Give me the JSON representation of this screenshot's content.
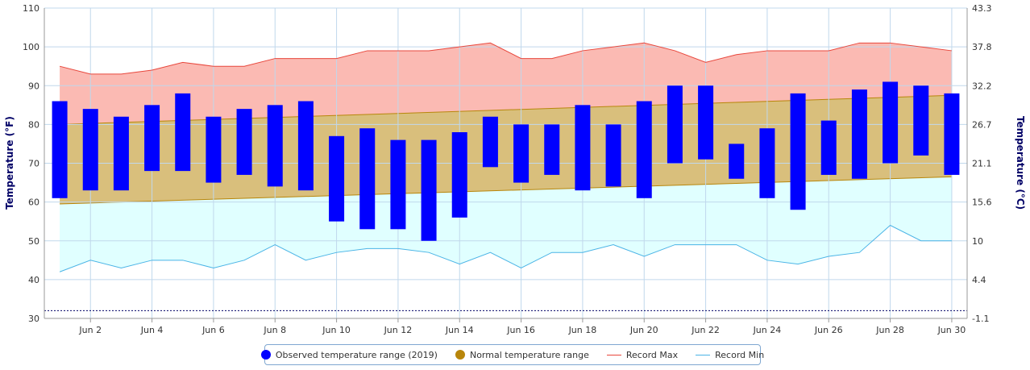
{
  "colors": {
    "observed": "#0000ff",
    "normal_fill": "#d9bf7c",
    "normal_line": "#b8860b",
    "record_max_fill": "#fbbab3",
    "record_max_line": "#e8473c",
    "record_min_fill": "#e0ffff",
    "record_min_line": "#4ab4e6",
    "grid": "#c0d8ec",
    "freezing": "#000066"
  },
  "legend": {
    "observed_label": "Observed temperature range (2019)",
    "normal_label": "Normal temperature range",
    "max_label": "Record Max",
    "min_label": "Record Min"
  },
  "chart_data": {
    "type": "bar",
    "y_axis_left": {
      "title": "Temperature (°F)",
      "range": [
        30,
        110
      ],
      "ticks": [
        30,
        40,
        50,
        60,
        70,
        80,
        90,
        100,
        110
      ]
    },
    "y_axis_right": {
      "title": "Temperature (°C)",
      "ticks": [
        "-1.1",
        "4.4",
        "10",
        "15.6",
        "21.1",
        "26.7",
        "32.2",
        "37.8",
        "43.3"
      ]
    },
    "x_axis": {
      "range": [
        1,
        30
      ],
      "ticks": [
        2,
        4,
        6,
        8,
        10,
        12,
        14,
        16,
        18,
        20,
        22,
        24,
        26,
        28,
        30
      ],
      "tick_labels": [
        "Jun 2",
        "Jun 4",
        "Jun 6",
        "Jun 8",
        "Jun 10",
        "Jun 12",
        "Jun 14",
        "Jun 16",
        "Jun 18",
        "Jun 20",
        "Jun 22",
        "Jun 24",
        "Jun 26",
        "Jun 28",
        "Jun 30"
      ]
    },
    "grid": true,
    "freezing_line": 32,
    "series": [
      {
        "name": "Observed temperature range (2019)",
        "type": "columnrange",
        "x": [
          1,
          2,
          3,
          4,
          5,
          6,
          7,
          8,
          9,
          10,
          11,
          12,
          13,
          14,
          15,
          16,
          17,
          18,
          19,
          20,
          21,
          22,
          23,
          24,
          25,
          26,
          27,
          28,
          29,
          30
        ],
        "low": [
          61,
          63,
          63,
          68,
          68,
          65,
          67,
          64,
          63,
          55,
          53,
          53,
          50,
          56,
          69,
          65,
          67,
          63,
          64,
          61,
          70,
          71,
          66,
          61,
          58,
          67,
          66,
          70,
          72,
          67
        ],
        "high": [
          86,
          84,
          82,
          85,
          88,
          82,
          84,
          85,
          86,
          77,
          79,
          76,
          76,
          78,
          82,
          80,
          80,
          85,
          80,
          86,
          90,
          90,
          75,
          79,
          88,
          81,
          89,
          91,
          90,
          88
        ]
      },
      {
        "name": "Normal temperature range",
        "type": "arearange",
        "x": [
          1,
          30
        ],
        "low": [
          59.5,
          66.5
        ],
        "high": [
          80,
          87.5
        ]
      },
      {
        "name": "Record Max",
        "type": "line",
        "x": [
          1,
          2,
          3,
          4,
          5,
          6,
          7,
          8,
          9,
          10,
          11,
          12,
          13,
          14,
          15,
          16,
          17,
          18,
          19,
          20,
          21,
          22,
          23,
          24,
          25,
          26,
          27,
          28,
          29,
          30
        ],
        "values": [
          95,
          93,
          93,
          94,
          96,
          95,
          95,
          97,
          97,
          97,
          99,
          99,
          99,
          100,
          101,
          97,
          97,
          99,
          100,
          101,
          99,
          96,
          98,
          99,
          99,
          99,
          101,
          101,
          100,
          99
        ]
      },
      {
        "name": "Record Min",
        "type": "line",
        "x": [
          1,
          2,
          3,
          4,
          5,
          6,
          7,
          8,
          9,
          10,
          11,
          12,
          13,
          14,
          15,
          16,
          17,
          18,
          19,
          20,
          21,
          22,
          23,
          24,
          25,
          26,
          27,
          28,
          29,
          30
        ],
        "values": [
          42,
          45,
          43,
          45,
          45,
          43,
          45,
          49,
          45,
          47,
          48,
          48,
          47,
          44,
          47,
          43,
          47,
          47,
          49,
          46,
          49,
          49,
          49,
          45,
          44,
          46,
          47,
          54,
          50,
          50
        ]
      }
    ]
  }
}
